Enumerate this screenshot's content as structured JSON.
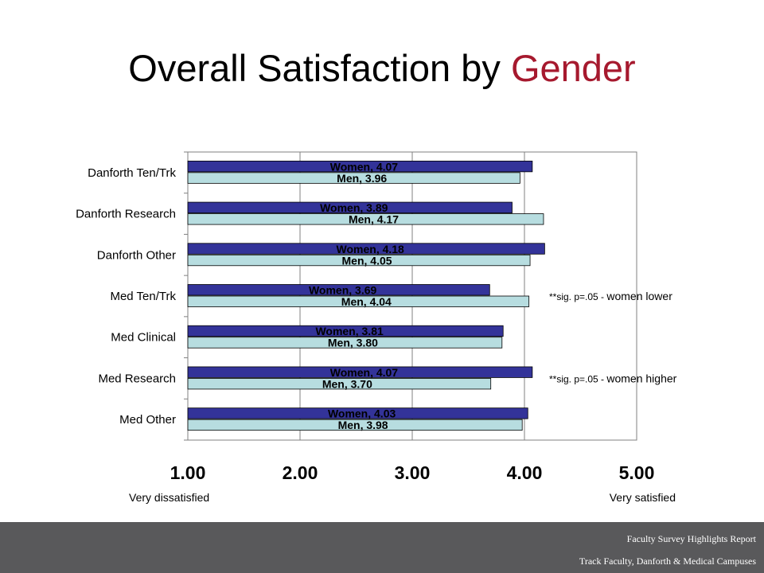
{
  "title": {
    "main": "Overall Satisfaction by",
    "accent": "Gender"
  },
  "chart_data": {
    "type": "bar",
    "orientation": "horizontal",
    "categories": [
      "Danforth Ten/Trk",
      "Danforth Research",
      "Danforth Other",
      "Med Ten/Trk",
      "Med Clinical",
      "Med Research",
      "Med Other"
    ],
    "series": [
      {
        "name": "Women",
        "values": [
          4.07,
          3.89,
          4.18,
          3.69,
          3.81,
          4.07,
          4.03
        ],
        "color": "#333399"
      },
      {
        "name": "Men",
        "values": [
          3.96,
          4.17,
          4.05,
          4.04,
          3.8,
          3.7,
          3.98
        ],
        "color": "#b7dde0"
      }
    ],
    "xlim": [
      1,
      5
    ],
    "xticks": [
      "1.00",
      "2.00",
      "3.00",
      "4.00",
      "5.00"
    ],
    "grid": true,
    "end_labels": {
      "left": "Very dissatisfied",
      "right": "Very satisfied"
    },
    "annotations": [
      {
        "category": "Med Ten/Trk",
        "prefix": "**sig. p=.05  -",
        "text": "women lower"
      },
      {
        "category": "Med Research",
        "prefix": "**sig. p=.05  -",
        "text": "women higher"
      }
    ]
  },
  "footer": {
    "line1": "Faculty Survey Highlights Report",
    "line2": "Track Faculty, Danforth & Medical Campuses"
  }
}
